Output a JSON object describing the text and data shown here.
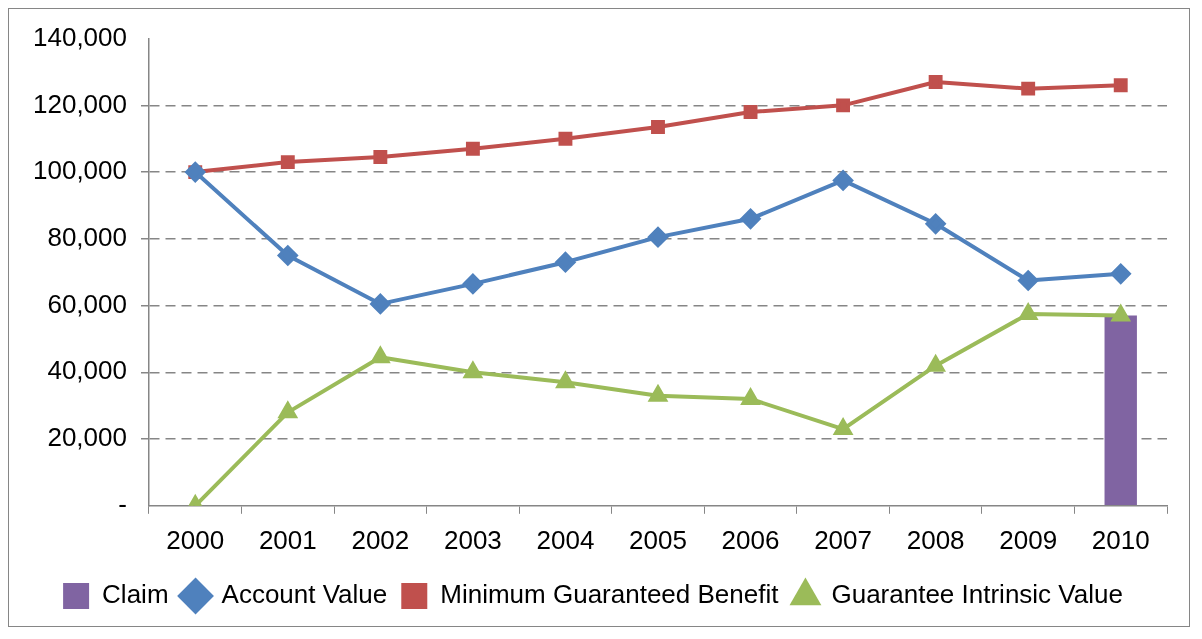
{
  "chart_data": {
    "type": "line",
    "categories": [
      "2000",
      "2001",
      "2002",
      "2003",
      "2004",
      "2005",
      "2006",
      "2007",
      "2008",
      "2009",
      "2010"
    ],
    "series": [
      {
        "name": "Claim",
        "type": "bar",
        "color": "#8064a2",
        "values": [
          null,
          null,
          null,
          null,
          null,
          null,
          null,
          null,
          null,
          null,
          57000
        ]
      },
      {
        "name": "Account Value",
        "marker": "diamond",
        "color": "#4f81bd",
        "values": [
          100000,
          75000,
          60500,
          66500,
          73000,
          80500,
          86000,
          97500,
          84500,
          67500,
          69500
        ]
      },
      {
        "name": "Minimum Guaranteed Benefit",
        "marker": "square",
        "color": "#c0504d",
        "values": [
          100000,
          103000,
          104500,
          107000,
          110000,
          113500,
          118000,
          120000,
          127000,
          125000,
          126000
        ]
      },
      {
        "name": "Guarantee Intrinsic Value",
        "marker": "triangle",
        "color": "#9bbb59",
        "values": [
          0,
          28000,
          44500,
          40000,
          37000,
          33000,
          32000,
          23000,
          42000,
          57500,
          57000
        ]
      }
    ],
    "ylim": [
      0,
      140000
    ],
    "yticks": [
      {
        "value": 0,
        "label": "-"
      },
      {
        "value": 20000,
        "label": "20,000"
      },
      {
        "value": 40000,
        "label": "40,000"
      },
      {
        "value": 60000,
        "label": "60,000"
      },
      {
        "value": 80000,
        "label": "80,000"
      },
      {
        "value": 100000,
        "label": "100,000"
      },
      {
        "value": 120000,
        "label": "120,000"
      },
      {
        "value": 140000,
        "label": "140,000"
      }
    ],
    "grid": "y",
    "legend": "bottom",
    "line_style": "solid"
  }
}
